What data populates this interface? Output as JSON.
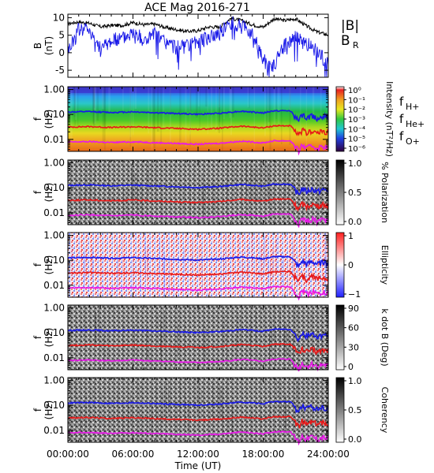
{
  "chart_data": [
    {
      "type": "line",
      "title": "ACE Mag 2016-271",
      "ylabel": "B (nT)",
      "ylim": [
        -7,
        11
      ],
      "yticks": [
        -5,
        0,
        5,
        10
      ],
      "xlim": [
        "00:00:00",
        "24:00:00"
      ],
      "legend": "right",
      "series": [
        {
          "name": "|B|",
          "color": "#000000",
          "x_hours": [
            0,
            1,
            2,
            3,
            4,
            5,
            6,
            7,
            8,
            9,
            10,
            11,
            12,
            13,
            14,
            15,
            16,
            17,
            18,
            19,
            20,
            21,
            22,
            23,
            24
          ],
          "values": [
            8.3,
            8.8,
            8.4,
            7.4,
            7.8,
            7.8,
            8.6,
            8.0,
            8.2,
            7.2,
            6.6,
            6.1,
            6.3,
            7.4,
            7.3,
            9.8,
            9.2,
            8.0,
            7.3,
            9.7,
            9.2,
            9.7,
            7.6,
            5.9,
            5.1
          ]
        },
        {
          "name": "B",
          "sub": "R",
          "color": "#1818e8",
          "x_hours": [
            0,
            1,
            2,
            3,
            4,
            5,
            6,
            7,
            8,
            9,
            10,
            11,
            12,
            13,
            14,
            15,
            16,
            17,
            18,
            19,
            20,
            21,
            22,
            23,
            24
          ],
          "values": [
            0.5,
            6.8,
            7.0,
            1.0,
            3.6,
            4.1,
            6.0,
            3.4,
            5.4,
            3.0,
            1.5,
            1.5,
            3.2,
            4.4,
            5.8,
            8.4,
            7.4,
            5.7,
            -2.2,
            -3.8,
            2.6,
            4.5,
            2.4,
            0.6,
            -3.2
          ]
        }
      ]
    },
    {
      "type": "heatmap",
      "ylabel": "f (Hz)",
      "yticks": [
        1.0,
        0.1,
        0.01
      ],
      "ytick_labels": [
        "1.00",
        "0.10",
        "0.01"
      ],
      "ylim": [
        0.0033,
        1.3
      ],
      "colorbar_label": "Intensity (nT²/Hz)",
      "colorbar_ticks": [
        "10⁰",
        "10⁻¹",
        "10⁻²",
        "10⁻³",
        "10⁻⁴",
        "10⁻⁵",
        "10⁻⁶"
      ],
      "legend": [
        {
          "name": "f",
          "sub": "H+",
          "color": "#1818e8"
        },
        {
          "name": "f",
          "sub": "He+",
          "color": "#e81818"
        },
        {
          "name": "f",
          "sub": "O+",
          "color": "#e818e8"
        }
      ]
    },
    {
      "type": "heatmap",
      "ylabel": "f (Hz)",
      "yticks": [
        1.0,
        0.1,
        0.01
      ],
      "ytick_labels": [
        "1.00",
        "0.10",
        "0.01"
      ],
      "colorbar_label": "% Polarization",
      "colorbar_ticks": [
        "1.0",
        "0.5",
        "0.0"
      ]
    },
    {
      "type": "heatmap",
      "ylabel": "f (Hz)",
      "yticks": [
        1.0,
        0.1,
        0.01
      ],
      "ytick_labels": [
        "1.00",
        "0.10",
        "0.01"
      ],
      "colorbar_label": "Ellipticity",
      "colorbar_ticks": [
        "1",
        "0",
        "−1"
      ]
    },
    {
      "type": "heatmap",
      "ylabel": "f (Hz)",
      "yticks": [
        1.0,
        0.1,
        0.01
      ],
      "ytick_labels": [
        "1.00",
        "0.10",
        "0.01"
      ],
      "colorbar_label": "k dot B (Deg)",
      "colorbar_ticks": [
        "90",
        "60",
        "30",
        "0"
      ]
    },
    {
      "type": "heatmap",
      "ylabel": "f (Hz)",
      "yticks": [
        1.0,
        0.1,
        0.01
      ],
      "ytick_labels": [
        "1.00",
        "0.10",
        "0.01"
      ],
      "colorbar_label": "Coherency",
      "colorbar_ticks": [
        "1.0",
        "0.5",
        "0.0"
      ],
      "xlabel": "Time (UT)",
      "xticks": [
        "00:00:00",
        "06:00:00",
        "12:00:00",
        "18:00:00",
        "24:00:00"
      ]
    }
  ],
  "gyro_lines": {
    "x_hours": [
      0,
      2,
      4,
      6,
      8,
      10,
      12,
      14,
      16,
      17,
      18,
      19,
      20,
      20.5,
      21,
      21.3,
      21.6,
      22,
      22.5,
      23,
      23.5,
      24
    ],
    "fHp": [
      0.125,
      0.13,
      0.12,
      0.128,
      0.118,
      0.11,
      0.102,
      0.112,
      0.135,
      0.125,
      0.115,
      0.14,
      0.14,
      0.14,
      0.075,
      0.055,
      0.095,
      0.07,
      0.09,
      0.07,
      0.085,
      0.075
    ]
  },
  "colors": {
    "hplus": "#1818e8",
    "heplus": "#e81818",
    "oplus": "#e818e8",
    "bmag": "#000000",
    "br": "#1818e8"
  }
}
